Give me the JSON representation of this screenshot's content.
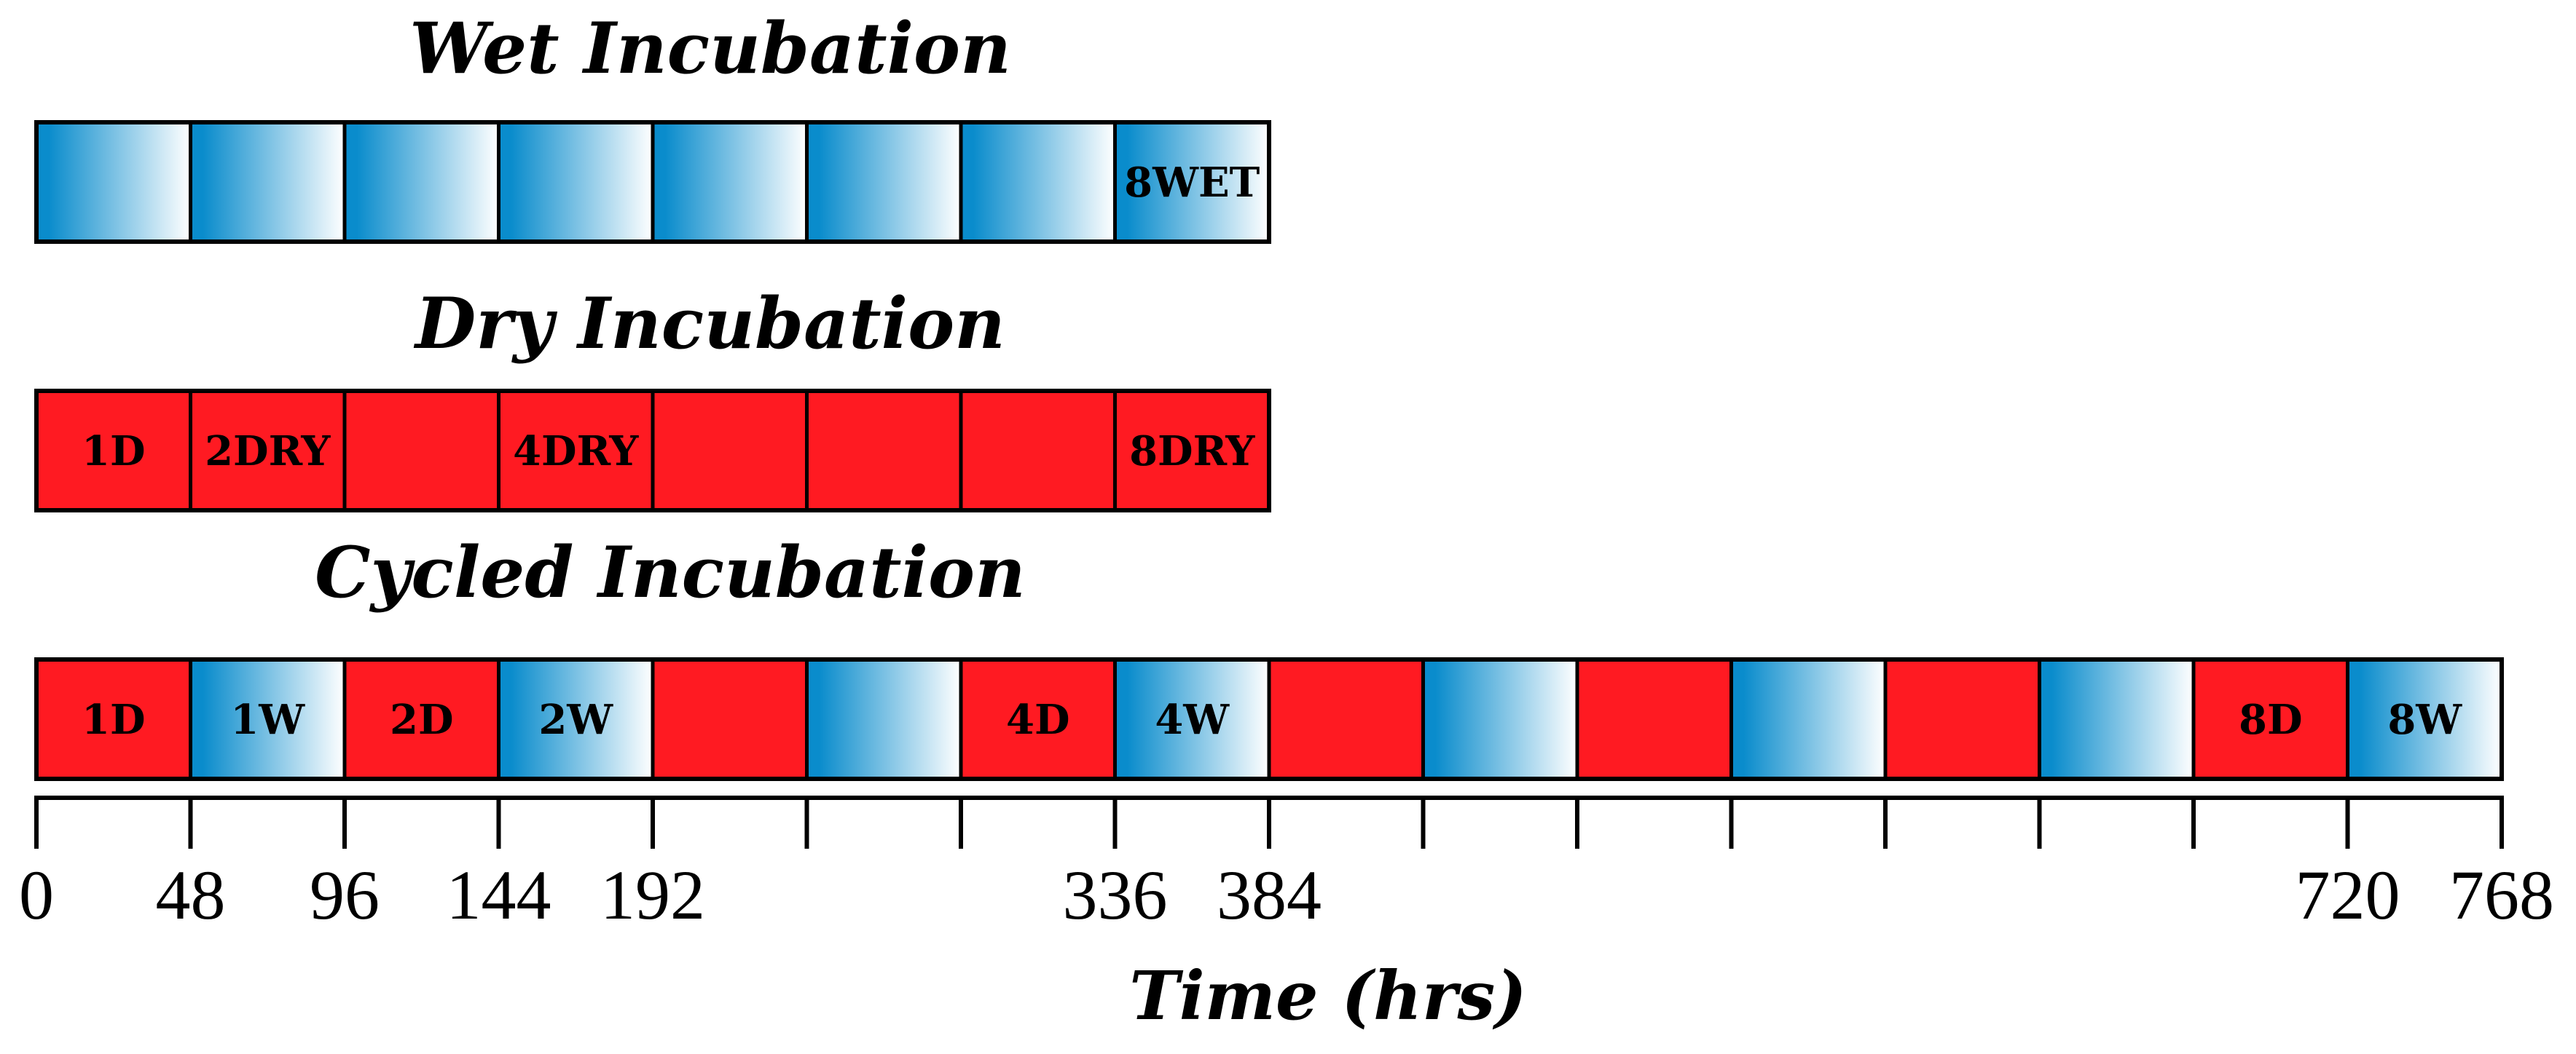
{
  "colors": {
    "wet": "#0a8ccc",
    "wet_fade": "#ffffff",
    "dry": "#ff1a22",
    "outline": "#000000"
  },
  "rows": [
    {
      "title": "Wet Incubation",
      "segments": [
        {
          "type": "wet",
          "label": ""
        },
        {
          "type": "wet",
          "label": ""
        },
        {
          "type": "wet",
          "label": ""
        },
        {
          "type": "wet",
          "label": ""
        },
        {
          "type": "wet",
          "label": ""
        },
        {
          "type": "wet",
          "label": ""
        },
        {
          "type": "wet",
          "label": ""
        },
        {
          "type": "wet",
          "label": "8WET"
        }
      ]
    },
    {
      "title": "Dry Incubation",
      "segments": [
        {
          "type": "dry",
          "label": "1D"
        },
        {
          "type": "dry",
          "label": "2DRY"
        },
        {
          "type": "dry",
          "label": ""
        },
        {
          "type": "dry",
          "label": "4DRY"
        },
        {
          "type": "dry",
          "label": ""
        },
        {
          "type": "dry",
          "label": ""
        },
        {
          "type": "dry",
          "label": ""
        },
        {
          "type": "dry",
          "label": "8DRY"
        }
      ]
    },
    {
      "title": "Cycled Incubation",
      "segments": [
        {
          "type": "dry",
          "label": "1D"
        },
        {
          "type": "wet",
          "label": "1W"
        },
        {
          "type": "dry",
          "label": "2D"
        },
        {
          "type": "wet",
          "label": "2W"
        },
        {
          "type": "dry",
          "label": ""
        },
        {
          "type": "wet",
          "label": ""
        },
        {
          "type": "dry",
          "label": "4D"
        },
        {
          "type": "wet",
          "label": "4W"
        },
        {
          "type": "dry",
          "label": ""
        },
        {
          "type": "wet",
          "label": ""
        },
        {
          "type": "dry",
          "label": ""
        },
        {
          "type": "wet",
          "label": ""
        },
        {
          "type": "dry",
          "label": ""
        },
        {
          "type": "wet",
          "label": ""
        },
        {
          "type": "dry",
          "label": "8D"
        },
        {
          "type": "wet",
          "label": "8W"
        }
      ]
    }
  ],
  "axis": {
    "title": "Time (hrs)",
    "segment_hours": 48,
    "ticks": [
      "0",
      "48",
      "96",
      "144",
      "192",
      "",
      "",
      "336",
      "384",
      "",
      "",
      "",
      "",
      "",
      "",
      "720",
      "768"
    ]
  }
}
